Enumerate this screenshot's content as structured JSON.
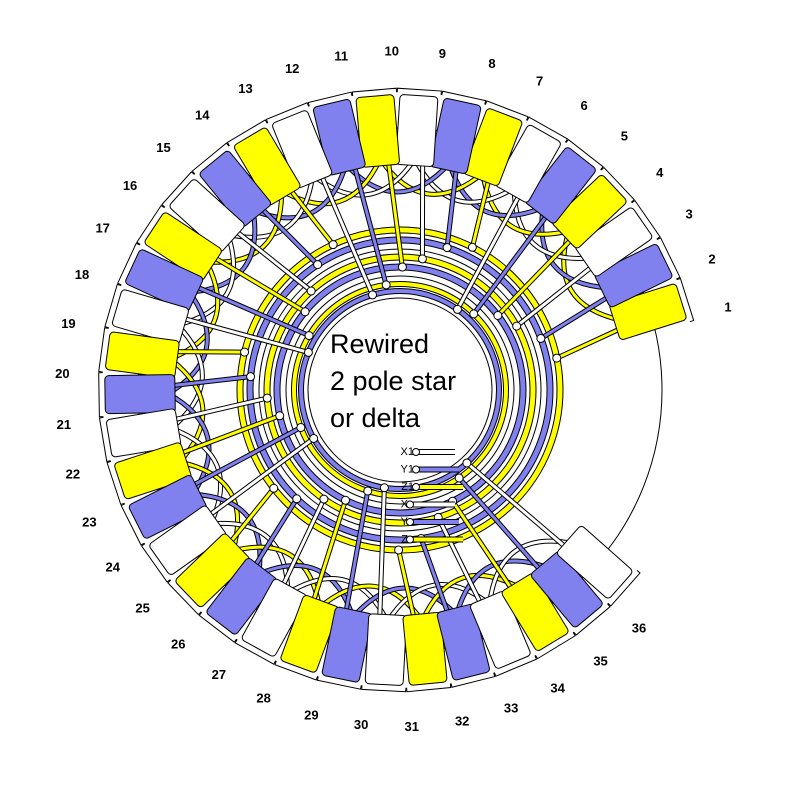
{
  "slots": [
    {
      "label": "1",
      "color": "#ffff00"
    },
    {
      "label": "2",
      "color": "#8080ee"
    },
    {
      "label": "3",
      "color": "#ffffff"
    },
    {
      "label": "4",
      "color": "#ffff00"
    },
    {
      "label": "5",
      "color": "#8080ee"
    },
    {
      "label": "6",
      "color": "#ffffff"
    },
    {
      "label": "7",
      "color": "#ffff00"
    },
    {
      "label": "8",
      "color": "#8080ee"
    },
    {
      "label": "9",
      "color": "#ffffff"
    },
    {
      "label": "10",
      "color": "#ffff00"
    },
    {
      "label": "11",
      "color": "#8080ee"
    },
    {
      "label": "12",
      "color": "#ffffff"
    },
    {
      "label": "13",
      "color": "#ffff00"
    },
    {
      "label": "14",
      "color": "#8080ee"
    },
    {
      "label": "15",
      "color": "#ffffff"
    },
    {
      "label": "16",
      "color": "#ffff00"
    },
    {
      "label": "17",
      "color": "#8080ee"
    },
    {
      "label": "18",
      "color": "#ffffff"
    },
    {
      "label": "19",
      "color": "#ffff00"
    },
    {
      "label": "20",
      "color": "#8080ee"
    },
    {
      "label": "21",
      "color": "#ffffff"
    },
    {
      "label": "22",
      "color": "#ffff00"
    },
    {
      "label": "23",
      "color": "#8080ee"
    },
    {
      "label": "24",
      "color": "#ffffff"
    },
    {
      "label": "25",
      "color": "#ffff00"
    },
    {
      "label": "26",
      "color": "#8080ee"
    },
    {
      "label": "27",
      "color": "#ffffff"
    },
    {
      "label": "28",
      "color": "#ffff00"
    },
    {
      "label": "29",
      "color": "#8080ee"
    },
    {
      "label": "30",
      "color": "#ffffff"
    },
    {
      "label": "31",
      "color": "#ffff00"
    },
    {
      "label": "32",
      "color": "#8080ee"
    },
    {
      "label": "33",
      "color": "#ffffff"
    },
    {
      "label": "34",
      "color": "#ffff00"
    },
    {
      "label": "35",
      "color": "#8080ee"
    },
    {
      "label": "36",
      "color": "#ffffff"
    }
  ],
  "center_text": [
    "Rewired",
    "2 pole star",
    "or delta"
  ],
  "terminals": [
    {
      "label": "X1",
      "color": "#ffffff"
    },
    {
      "label": "Y1",
      "color": "#8080ee"
    },
    {
      "label": "Z1",
      "color": "#ffff00"
    },
    {
      "label": "X",
      "color": "#ffffff"
    },
    {
      "label": "Y",
      "color": "#8080ee"
    },
    {
      "label": "Z",
      "color": "#ffff00"
    }
  ]
}
